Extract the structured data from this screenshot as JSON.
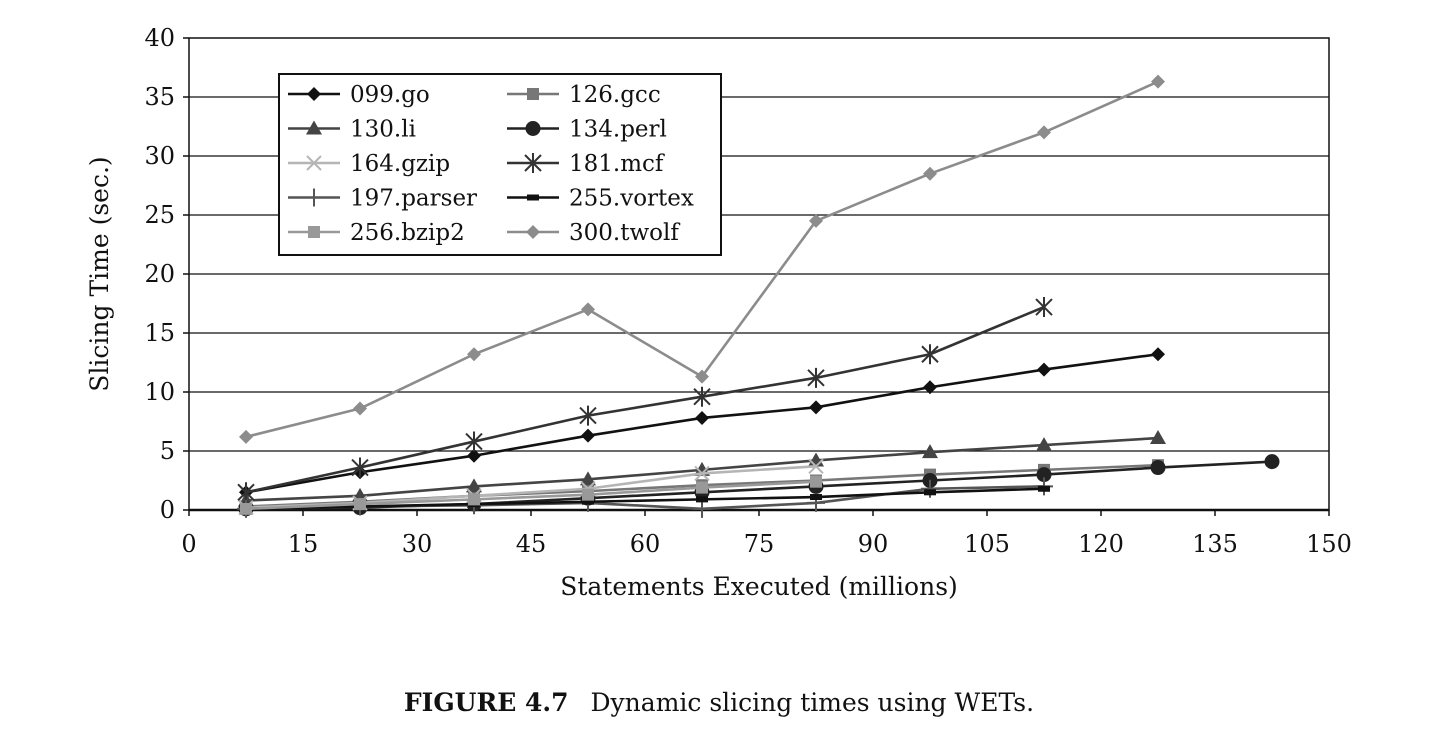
{
  "chart_data": {
    "type": "line",
    "title": "",
    "xlabel": "Statements Executed (millions)",
    "ylabel": "Slicing Time (sec.)",
    "xlim": [
      0,
      150
    ],
    "ylim": [
      0,
      40
    ],
    "xticks": [
      0,
      15,
      30,
      45,
      60,
      75,
      90,
      105,
      120,
      135,
      150
    ],
    "yticks": [
      0,
      5,
      10,
      15,
      20,
      25,
      30,
      35,
      40
    ],
    "grid": "horizontal",
    "legend_position": "top-left",
    "series": [
      {
        "name": "099.go",
        "marker": "diamond",
        "color": "#111111",
        "x": [
          7.5,
          22.5,
          37.5,
          52.5,
          67.5,
          82.5,
          97.5,
          112.5,
          127.5
        ],
        "y": [
          1.5,
          3.2,
          4.6,
          6.3,
          7.8,
          8.7,
          10.4,
          11.9,
          13.2
        ]
      },
      {
        "name": "126.gcc",
        "marker": "square",
        "color": "#777777",
        "x": [
          7.5,
          22.5,
          37.5,
          52.5,
          67.5,
          82.5,
          97.5,
          112.5,
          127.5
        ],
        "y": [
          0.3,
          0.7,
          1.2,
          1.6,
          2.1,
          2.5,
          3.0,
          3.4,
          3.8
        ]
      },
      {
        "name": "130.li",
        "marker": "triangle",
        "color": "#444444",
        "x": [
          7.5,
          22.5,
          37.5,
          52.5,
          67.5,
          82.5,
          97.5,
          112.5,
          127.5
        ],
        "y": [
          0.8,
          1.2,
          2.0,
          2.6,
          3.4,
          4.2,
          4.9,
          5.5,
          6.1
        ]
      },
      {
        "name": "134.perl",
        "marker": "circle",
        "color": "#222222",
        "x": [
          7.5,
          22.5,
          37.5,
          52.5,
          67.5,
          82.5,
          97.5,
          112.5,
          127.5,
          142.5
        ],
        "y": [
          0.1,
          0.2,
          0.5,
          1.0,
          1.5,
          2.0,
          2.5,
          3.0,
          3.6,
          4.1
        ]
      },
      {
        "name": "164.gzip",
        "marker": "x",
        "color": "#b5b5b5",
        "x": [
          7.5,
          22.5,
          37.5,
          52.5,
          67.5,
          82.5
        ],
        "y": [
          0.2,
          0.6,
          1.2,
          1.8,
          3.1,
          3.7
        ]
      },
      {
        "name": "181.mcf",
        "marker": "star",
        "color": "#333333",
        "x": [
          7.5,
          22.5,
          37.5,
          52.5,
          67.5,
          82.5,
          97.5,
          112.5
        ],
        "y": [
          1.5,
          3.6,
          5.8,
          8.0,
          9.6,
          11.2,
          13.2,
          17.2
        ]
      },
      {
        "name": "197.parser",
        "marker": "plus",
        "color": "#555555",
        "x": [
          7.5,
          22.5,
          37.5,
          52.5,
          67.5,
          82.5,
          97.5,
          112.5
        ],
        "y": [
          0.1,
          0.3,
          0.4,
          0.6,
          0.1,
          0.6,
          1.8,
          2.0
        ]
      },
      {
        "name": "255.vortex",
        "marker": "dash",
        "color": "#111111",
        "x": [
          7.5,
          22.5,
          37.5,
          52.5,
          67.5,
          82.5,
          97.5,
          112.5
        ],
        "y": [
          0.1,
          0.3,
          0.5,
          0.7,
          0.9,
          1.1,
          1.5,
          1.8
        ]
      },
      {
        "name": "256.bzip2",
        "marker": "square",
        "color": "#999999",
        "x": [
          7.5,
          22.5,
          37.5,
          52.5,
          67.5,
          82.5
        ],
        "y": [
          0.1,
          0.5,
          0.9,
          1.3,
          1.9,
          2.4
        ]
      },
      {
        "name": "300.twolf",
        "marker": "diamond",
        "color": "#8c8c8c",
        "x": [
          7.5,
          22.5,
          37.5,
          52.5,
          67.5,
          82.5,
          97.5,
          112.5,
          127.5
        ],
        "y": [
          6.2,
          8.6,
          13.2,
          17.0,
          11.3,
          24.5,
          28.5,
          32.0,
          36.3
        ]
      }
    ]
  },
  "caption": {
    "label": "FIGURE 4.7",
    "text": "Dynamic slicing times using WETs."
  }
}
